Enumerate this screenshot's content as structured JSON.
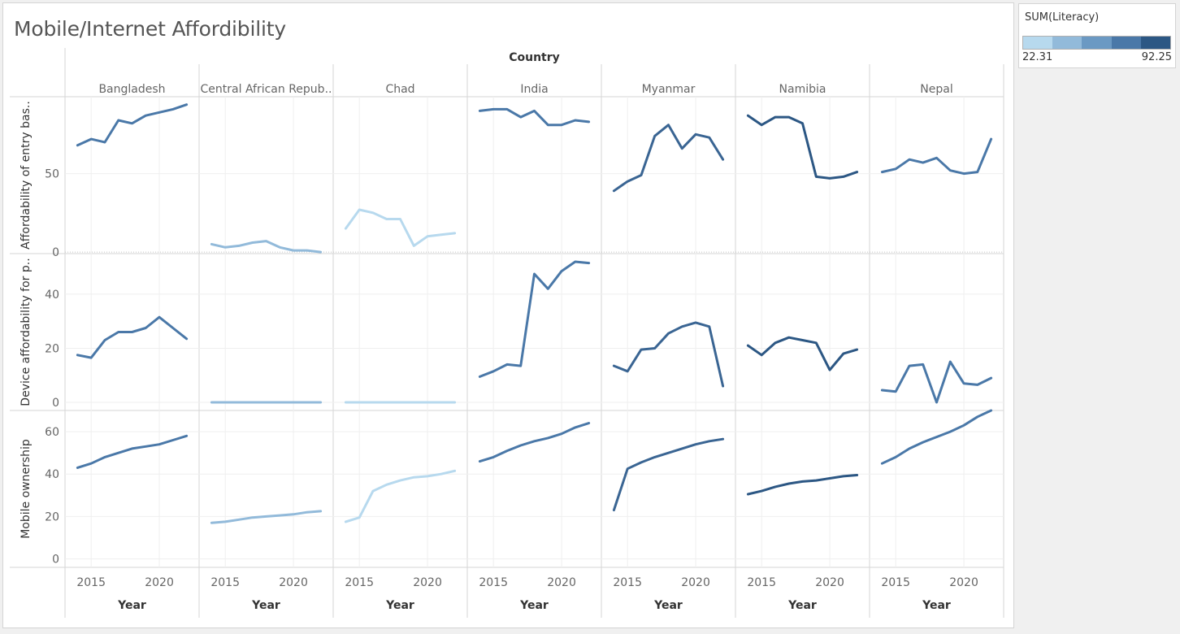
{
  "title": "Mobile/Internet Affordibility",
  "legend": {
    "title": "SUM(Literacy)",
    "min_label": "22.31",
    "max_label": "92.25",
    "colors": [
      "#b7d9ee",
      "#92bada",
      "#6b99c3",
      "#4a78a8",
      "#2c5784"
    ]
  },
  "chart_data": {
    "type": "line",
    "column_header": "Country",
    "xlabel": "Year",
    "x_ticks": [
      "2015",
      "2020"
    ],
    "x": [
      2014,
      2015,
      2016,
      2017,
      2018,
      2019,
      2020,
      2021,
      2022
    ],
    "countries": [
      {
        "name": "Bangladesh",
        "display": "Bangladesh",
        "color": "#4a78a8"
      },
      {
        "name": "Central African Republic",
        "display": "Central African Repub..",
        "color": "#92bada"
      },
      {
        "name": "Chad",
        "display": "Chad",
        "color": "#b7d9ee"
      },
      {
        "name": "India",
        "display": "India",
        "color": "#4a78a8"
      },
      {
        "name": "Myanmar",
        "display": "Myanmar",
        "color": "#3a6593"
      },
      {
        "name": "Namibia",
        "display": "Namibia",
        "color": "#2c5784"
      },
      {
        "name": "Nepal",
        "display": "Nepal",
        "color": "#4a78a8"
      }
    ],
    "measures": [
      {
        "label": "Affordability of entry bas..",
        "ylim": [
          -1,
          99
        ],
        "ticks": [
          "0",
          "50"
        ],
        "tick_values": [
          0,
          50
        ],
        "dotted_zero": true,
        "series": [
          [
            68,
            72,
            70,
            84,
            82,
            87,
            89,
            91,
            94
          ],
          [
            5,
            3,
            4,
            6,
            7,
            3,
            1,
            1,
            0
          ],
          [
            15,
            27,
            25,
            21,
            21,
            4,
            10,
            11,
            12
          ],
          [
            90,
            91,
            91,
            86,
            90,
            81,
            81,
            84,
            83
          ],
          [
            39,
            45,
            49,
            74,
            81,
            66,
            75,
            73,
            59
          ],
          [
            87,
            81,
            86,
            86,
            82,
            48,
            47,
            48,
            51
          ],
          [
            51,
            53,
            59,
            57,
            60,
            52,
            50,
            51,
            72
          ]
        ]
      },
      {
        "label": "Device affordability for p..",
        "ylim": [
          -3,
          55
        ],
        "ticks": [
          "0",
          "20",
          "40"
        ],
        "tick_values": [
          0,
          20,
          40
        ],
        "dotted_zero": false,
        "series": [
          [
            17.5,
            16.5,
            23,
            26,
            26,
            27.5,
            31.5,
            27.5,
            23.5
          ],
          [
            0,
            0,
            0,
            0,
            0,
            0,
            0,
            0,
            0
          ],
          [
            0,
            0,
            0,
            0,
            0,
            0,
            0,
            0,
            0
          ],
          [
            9.5,
            11.5,
            14,
            13.5,
            47.5,
            42,
            48.5,
            52,
            51.5
          ],
          [
            13.5,
            11.5,
            19.5,
            20,
            25.5,
            28,
            29.5,
            28,
            6
          ],
          [
            21,
            17.5,
            22,
            24,
            23,
            22,
            12,
            18,
            19.5
          ],
          [
            4.5,
            4,
            13.5,
            14,
            0,
            15,
            7,
            6.5,
            9
          ]
        ]
      },
      {
        "label": "Mobile ownership",
        "ylim": [
          -4,
          70
        ],
        "ticks": [
          "0",
          "20",
          "40",
          "60"
        ],
        "tick_values": [
          0,
          20,
          40,
          60
        ],
        "dotted_zero": false,
        "series": [
          [
            43,
            45,
            48,
            50,
            52,
            53,
            54,
            56,
            58
          ],
          [
            17,
            17.5,
            18.5,
            19.5,
            20,
            20.5,
            21,
            22,
            22.5
          ],
          [
            17.5,
            19.5,
            32,
            35,
            37,
            38.5,
            39,
            40,
            41.5
          ],
          [
            46,
            48,
            51,
            53.5,
            55.5,
            57,
            59,
            62,
            64
          ],
          [
            23,
            42.5,
            45.5,
            48,
            50,
            52,
            54,
            55.5,
            56.5
          ],
          [
            30.5,
            32,
            34,
            35.5,
            36.5,
            37,
            38,
            39,
            39.5
          ],
          [
            45,
            48,
            52,
            55,
            57.5,
            60,
            63,
            67,
            70
          ]
        ]
      }
    ]
  }
}
